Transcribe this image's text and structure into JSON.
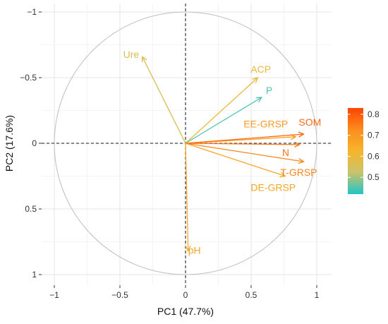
{
  "chart_data": {
    "type": "scatter",
    "subtype": "pca-variable-correlation-circle",
    "title": "",
    "xlabel": "PC1 (47.7%)",
    "ylabel": "PC2 (17.6%)",
    "xlim": [
      -1.05,
      1.05
    ],
    "ylim": [
      -1.05,
      1.05
    ],
    "y_axis_reversed": true,
    "x_ticks": [
      -1,
      -0.5,
      0,
      0.5,
      1
    ],
    "x_tick_labels": [
      "−1",
      "−0.5",
      "0",
      "0.5",
      "1"
    ],
    "y_ticks": [
      -1,
      -0.5,
      0,
      0.5,
      1
    ],
    "y_tick_labels": [
      "−1",
      "−0.5",
      "0",
      "0.5",
      "1"
    ],
    "grid": true,
    "unit_circle": true,
    "reference_lines": [
      {
        "axis": "x",
        "value": 0,
        "style": "dashed"
      },
      {
        "axis": "y",
        "value": 0,
        "style": "dashed"
      }
    ],
    "color_scale": {
      "ticks": [
        0.8,
        0.7,
        0.6,
        0.5
      ],
      "tick_labels": [
        "0.8",
        "0.7",
        "0.6",
        "0.5"
      ],
      "min": 0.42,
      "max": 0.83,
      "stops": [
        "#20c4c9",
        "#c9c36a",
        "#f6b52c",
        "#fa8d1e",
        "#ff4400"
      ]
    },
    "legend_position": "right",
    "variables": [
      {
        "name": "Ure",
        "x": -0.33,
        "y": -0.66,
        "contrib": 0.56
      },
      {
        "name": "ACP",
        "x": 0.55,
        "y": -0.5,
        "contrib": 0.6
      },
      {
        "name": "P",
        "x": 0.58,
        "y": -0.35,
        "contrib": 0.45
      },
      {
        "name": "EE-GRSP",
        "x": 0.84,
        "y": -0.05,
        "contrib": 0.69
      },
      {
        "name": "SOM",
        "x": 0.9,
        "y": -0.07,
        "contrib": 0.78
      },
      {
        "name": "N",
        "x": 0.87,
        "y": 0.01,
        "contrib": 0.76
      },
      {
        "name": "T-GRSP",
        "x": 0.9,
        "y": 0.14,
        "contrib": 0.74
      },
      {
        "name": "DE-GRSP",
        "x": 0.76,
        "y": 0.25,
        "contrib": 0.66
      },
      {
        "name": "pH",
        "x": 0.02,
        "y": 0.82,
        "contrib": 0.66
      }
    ]
  }
}
